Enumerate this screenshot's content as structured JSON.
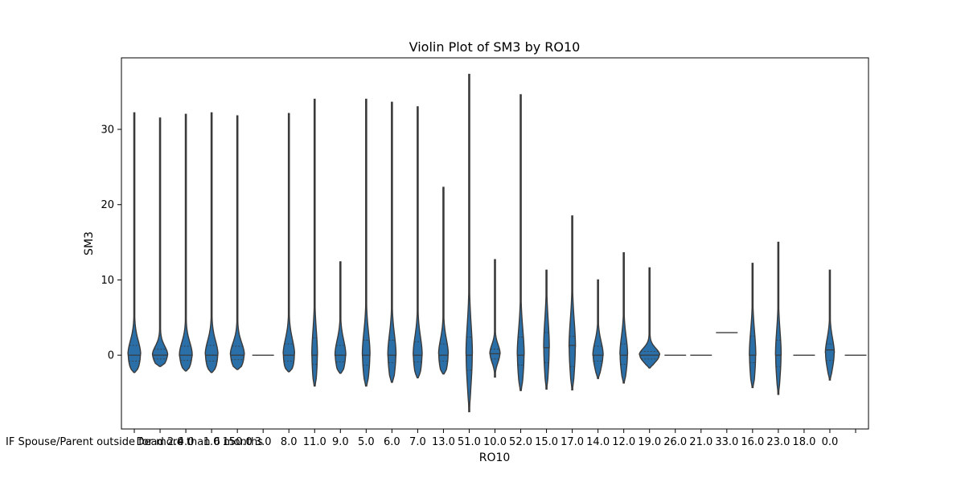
{
  "chart_data": {
    "type": "violin",
    "title": "Violin Plot of SM3 by RO10",
    "xlabel": "RO10",
    "ylabel": "SM3",
    "ylim": [
      -9.8,
      39.5
    ],
    "yticks": [
      0,
      10,
      20,
      30
    ],
    "grid": false,
    "legend": "none",
    "color": "#2a6fa8",
    "edge_color": "#3a3a3a",
    "series": [
      {
        "category": "IF Spouse/Parent outside for more than 6 months",
        "min": -2.3,
        "max": 32.2,
        "q1": -0.8,
        "median": 0.0,
        "q3": 1.3,
        "max_width": 0.5,
        "mode": 0.0
      },
      {
        "category": "Dead 2.0",
        "min": -1.5,
        "max": 31.5,
        "q1": -0.5,
        "median": 0.0,
        "q3": 0.8,
        "max_width": 0.6,
        "mode": 0.0
      },
      {
        "category": "4.0",
        "min": -2.1,
        "max": 32.0,
        "q1": -0.7,
        "median": 0.0,
        "q3": 1.2,
        "max_width": 0.5,
        "mode": 0.0
      },
      {
        "category": "1.0",
        "min": -2.3,
        "max": 32.2,
        "q1": -0.8,
        "median": 0.0,
        "q3": 1.3,
        "max_width": 0.5,
        "mode": 0.0
      },
      {
        "category": "150.0",
        "min": -1.9,
        "max": 31.8,
        "q1": -0.6,
        "median": 0.0,
        "q3": 1.2,
        "max_width": 0.55,
        "mode": 0.0
      },
      {
        "category": "3.0",
        "min": 0.0,
        "max": 0.0,
        "q1": 0.0,
        "median": 0.0,
        "q3": 0.0,
        "max_width": 0.8,
        "mode": 0.0
      },
      {
        "category": "8.0",
        "min": -2.2,
        "max": 32.1,
        "q1": -0.8,
        "median": 0.0,
        "q3": 1.5,
        "max_width": 0.45,
        "mode": 0.0
      },
      {
        "category": "11.0",
        "min": -4.1,
        "max": 34.0,
        "q1": -1.2,
        "median": 0.0,
        "q3": 2.3,
        "max_width": 0.22,
        "mode": 0.0
      },
      {
        "category": "9.0",
        "min": -2.4,
        "max": 12.4,
        "q1": -0.9,
        "median": 0.0,
        "q3": 1.3,
        "max_width": 0.42,
        "mode": 0.0
      },
      {
        "category": "5.0",
        "min": -4.1,
        "max": 34.0,
        "q1": -1.3,
        "median": 0.0,
        "q3": 2.0,
        "max_width": 0.3,
        "mode": 0.0
      },
      {
        "category": "6.0",
        "min": -3.6,
        "max": 33.6,
        "q1": -1.0,
        "median": 0.0,
        "q3": 2.0,
        "max_width": 0.32,
        "mode": 0.0
      },
      {
        "category": "7.0",
        "min": -3.0,
        "max": 33.0,
        "q1": -0.9,
        "median": 0.0,
        "q3": 1.8,
        "max_width": 0.35,
        "mode": 0.0
      },
      {
        "category": "13.0",
        "min": -2.5,
        "max": 22.3,
        "q1": -0.8,
        "median": 0.0,
        "q3": 1.5,
        "max_width": 0.38,
        "mode": 0.0
      },
      {
        "category": "51.0",
        "min": -7.5,
        "max": 37.3,
        "q1": -2.0,
        "median": 0.0,
        "q3": 2.4,
        "max_width": 0.25,
        "mode": 0.0
      },
      {
        "category": "10.0",
        "min": -2.9,
        "max": 12.7,
        "q1": -0.5,
        "median": 0.2,
        "q3": 0.8,
        "max_width": 0.4,
        "mode": 0.2
      },
      {
        "category": "52.0",
        "min": -4.7,
        "max": 34.6,
        "q1": -1.3,
        "median": 0.0,
        "q3": 2.4,
        "max_width": 0.27,
        "mode": 0.0
      },
      {
        "category": "15.0",
        "min": -4.5,
        "max": 11.3,
        "q1": -1.0,
        "median": 1.0,
        "q3": 3.0,
        "max_width": 0.22,
        "mode": 1.0
      },
      {
        "category": "17.0",
        "min": -4.6,
        "max": 18.5,
        "q1": -1.5,
        "median": 1.3,
        "q3": 2.5,
        "max_width": 0.25,
        "mode": 1.0
      },
      {
        "category": "14.0",
        "min": -3.1,
        "max": 10.0,
        "q1": -0.8,
        "median": 0.0,
        "q3": 1.2,
        "max_width": 0.4,
        "mode": 0.0
      },
      {
        "category": "12.0",
        "min": -3.7,
        "max": 13.6,
        "q1": -1.2,
        "median": 0.0,
        "q3": 1.5,
        "max_width": 0.3,
        "mode": 0.0
      },
      {
        "category": "19.0",
        "min": -1.7,
        "max": 11.6,
        "q1": -0.5,
        "median": 0.0,
        "q3": 0.5,
        "max_width": 0.8,
        "mode": 0.0
      },
      {
        "category": "26.0",
        "min": 0.0,
        "max": 0.0,
        "q1": 0.0,
        "median": 0.0,
        "q3": 0.0,
        "max_width": 0.8,
        "mode": 0.0
      },
      {
        "category": "21.0",
        "min": 0.0,
        "max": 0.0,
        "q1": 0.0,
        "median": 0.0,
        "q3": 0.0,
        "max_width": 0.8,
        "mode": 0.0
      },
      {
        "category": "33.0",
        "min": 3.0,
        "max": 3.0,
        "q1": 3.0,
        "median": 3.0,
        "q3": 3.0,
        "max_width": 0.8,
        "mode": 3.0
      },
      {
        "category": "16.0",
        "min": -4.3,
        "max": 12.2,
        "q1": -1.0,
        "median": 0.0,
        "q3": 2.5,
        "max_width": 0.25,
        "mode": 0.0
      },
      {
        "category": "23.0",
        "min": -5.2,
        "max": 15.0,
        "q1": -1.5,
        "median": 0.0,
        "q3": 2.0,
        "max_width": 0.22,
        "mode": 0.0
      },
      {
        "category": "18.0",
        "min": 0.0,
        "max": 0.0,
        "q1": 0.0,
        "median": 0.0,
        "q3": 0.0,
        "max_width": 0.8,
        "mode": 0.0
      },
      {
        "category": "0.0",
        "min": -3.3,
        "max": 11.3,
        "q1": -0.7,
        "median": 0.7,
        "q3": 1.5,
        "max_width": 0.35,
        "mode": 0.2
      },
      {
        "category": "",
        "min": 0.0,
        "max": 0.0,
        "q1": 0.0,
        "median": 0.0,
        "q3": 0.0,
        "max_width": 0.8,
        "mode": 0.0
      }
    ]
  }
}
